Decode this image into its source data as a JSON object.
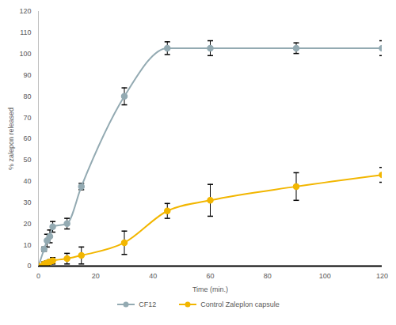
{
  "chart_data": {
    "type": "line",
    "x_label": "Time (min.)",
    "y_label": "% zalepon released",
    "x": [
      0,
      2,
      3,
      4,
      5,
      10,
      15,
      30,
      45,
      60,
      90,
      120
    ],
    "xlim": [
      0,
      120
    ],
    "xticks": [
      0,
      20,
      40,
      60,
      80,
      100,
      120
    ],
    "ylim": [
      0,
      120
    ],
    "yticks": [
      0,
      10,
      20,
      30,
      40,
      50,
      60,
      70,
      80,
      90,
      100,
      110,
      120
    ],
    "grid": false,
    "legend": "bottom",
    "series": [
      {
        "name": "CF12",
        "color": "#93aab2",
        "marker": "circle",
        "values": [
          0,
          8,
          12,
          14,
          18.5,
          20,
          37.5,
          80,
          102.7,
          102.7,
          102.7,
          102.7
        ],
        "errors": [
          0,
          1,
          3,
          3,
          2.5,
          2.5,
          1.5,
          4,
          3,
          3.5,
          2.5,
          3.5
        ]
      },
      {
        "name": "Control Zaleplon capsule",
        "color": "#f2b600",
        "marker": "circle",
        "values": [
          0,
          1,
          1.5,
          2,
          2.5,
          3.5,
          5,
          11,
          26,
          31,
          37.5,
          43
        ],
        "errors": [
          0,
          1,
          1,
          1,
          1.5,
          2.5,
          4,
          5.5,
          3.5,
          7.5,
          6.5,
          3.5
        ]
      }
    ]
  }
}
